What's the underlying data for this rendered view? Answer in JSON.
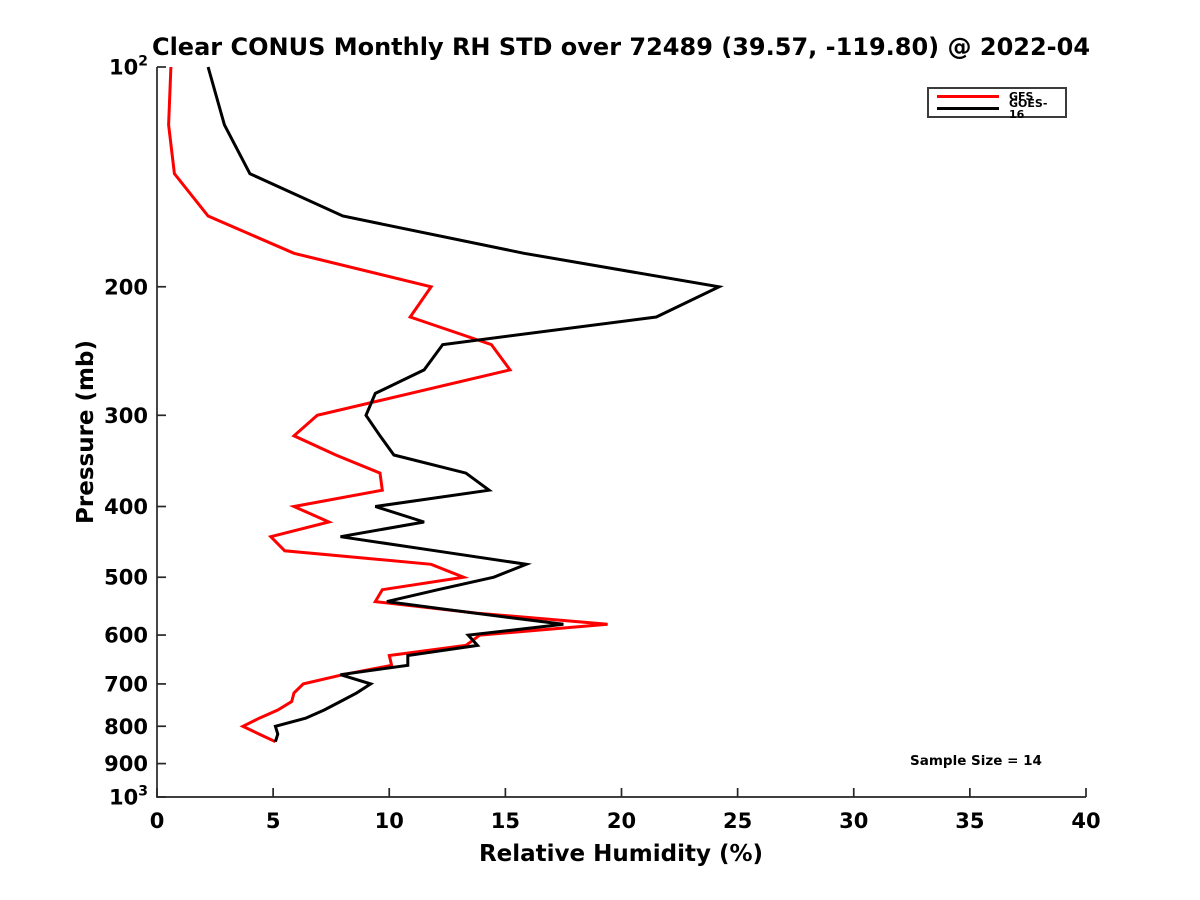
{
  "title": "Clear CONUS Monthly RH STD over 72489 (39.57, -119.80) @ 2022-04",
  "annotation": {
    "sample_size_label": "Sample Size = 14"
  },
  "legend": {
    "items": [
      {
        "label": "GFS",
        "color": "#ff0000"
      },
      {
        "label": "GOES-16",
        "color": "#000000"
      }
    ]
  },
  "chart_data": {
    "type": "line",
    "title": "Clear CONUS Monthly RH STD over 72489 (39.57, -119.80) @ 2022-04",
    "xlabel": "Relative Humidity (%)",
    "ylabel": "Pressure (mb)",
    "xlim": [
      0,
      40
    ],
    "x_ticks": [
      0,
      5,
      10,
      15,
      20,
      25,
      30,
      35,
      40
    ],
    "y_scale": "log",
    "y_inverted": true,
    "ylim": [
      100,
      1000
    ],
    "y_ticks": [
      {
        "value": 100,
        "label": "10",
        "sup": "2"
      },
      {
        "value": 200,
        "label": "200"
      },
      {
        "value": 300,
        "label": "300"
      },
      {
        "value": 400,
        "label": "400"
      },
      {
        "value": 500,
        "label": "500"
      },
      {
        "value": 600,
        "label": "600"
      },
      {
        "value": 700,
        "label": "700"
      },
      {
        "value": 800,
        "label": "800"
      },
      {
        "value": 900,
        "label": "900"
      },
      {
        "value": 1000,
        "label": "10",
        "sup": "3"
      }
    ],
    "legend_position": "upper right",
    "grid": false,
    "axis_color": "#262626",
    "sample_size": 14,
    "series": [
      {
        "name": "GFS",
        "color": "#ff0000",
        "points_pressure_rh": [
          [
            100,
            0.6
          ],
          [
            120,
            0.5
          ],
          [
            140,
            0.75
          ],
          [
            160,
            2.2
          ],
          [
            180,
            5.9
          ],
          [
            200,
            11.8
          ],
          [
            220,
            10.9
          ],
          [
            240,
            14.4
          ],
          [
            260,
            15.2
          ],
          [
            280,
            10.9
          ],
          [
            300,
            6.9
          ],
          [
            320,
            5.9
          ],
          [
            340,
            7.7
          ],
          [
            360,
            9.6
          ],
          [
            380,
            9.7
          ],
          [
            400,
            5.9
          ],
          [
            420,
            7.4
          ],
          [
            440,
            4.9
          ],
          [
            460,
            5.5
          ],
          [
            480,
            11.8
          ],
          [
            500,
            13.2
          ],
          [
            520,
            9.7
          ],
          [
            540,
            9.4
          ],
          [
            560,
            13.8
          ],
          [
            580,
            19.4
          ],
          [
            600,
            13.9
          ],
          [
            620,
            13.3
          ],
          [
            640,
            10.0
          ],
          [
            660,
            10.1
          ],
          [
            680,
            8.0
          ],
          [
            700,
            6.3
          ],
          [
            720,
            5.9
          ],
          [
            740,
            5.8
          ],
          [
            760,
            5.2
          ],
          [
            780,
            4.4
          ],
          [
            800,
            3.7
          ],
          [
            820,
            4.4
          ],
          [
            840,
            5.1
          ]
        ]
      },
      {
        "name": "GOES-16",
        "color": "#000000",
        "points_pressure_rh": [
          [
            100,
            2.2
          ],
          [
            120,
            2.9
          ],
          [
            140,
            4.0
          ],
          [
            160,
            8.0
          ],
          [
            180,
            15.8
          ],
          [
            200,
            24.2
          ],
          [
            220,
            21.5
          ],
          [
            240,
            12.3
          ],
          [
            260,
            11.5
          ],
          [
            280,
            9.4
          ],
          [
            300,
            9.0
          ],
          [
            320,
            9.6
          ],
          [
            340,
            10.2
          ],
          [
            360,
            13.3
          ],
          [
            380,
            14.3
          ],
          [
            400,
            9.4
          ],
          [
            420,
            11.5
          ],
          [
            440,
            7.9
          ],
          [
            460,
            12.0
          ],
          [
            480,
            15.9
          ],
          [
            500,
            14.5
          ],
          [
            520,
            12.1
          ],
          [
            540,
            9.9
          ],
          [
            560,
            13.7
          ],
          [
            580,
            17.5
          ],
          [
            600,
            13.4
          ],
          [
            620,
            13.8
          ],
          [
            640,
            10.8
          ],
          [
            660,
            10.8
          ],
          [
            680,
            7.9
          ],
          [
            700,
            9.2
          ],
          [
            720,
            8.6
          ],
          [
            740,
            7.9
          ],
          [
            760,
            7.2
          ],
          [
            780,
            6.4
          ],
          [
            800,
            5.1
          ],
          [
            820,
            5.2
          ],
          [
            840,
            5.1
          ]
        ]
      }
    ]
  }
}
